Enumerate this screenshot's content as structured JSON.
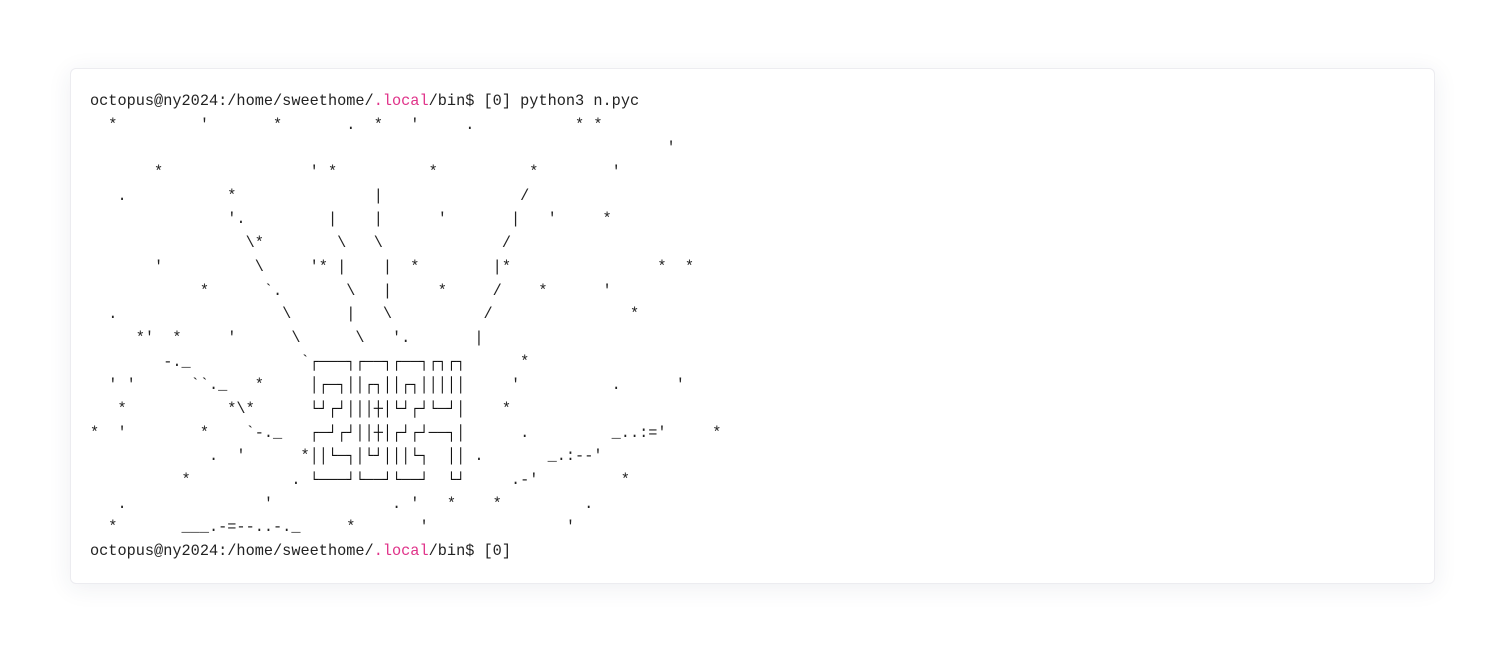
{
  "terminal": {
    "prompt": {
      "user_host_path": "octopus@ny2024:/home/sweethome/",
      "highlight": ".local",
      "rest": "/bin$ [0]",
      "command": " python3 n.pyc"
    },
    "colors": {
      "highlight": "#e0338a",
      "accent_blue": "#1f5d8c",
      "text": "#222222"
    },
    "art_lines": [
      "  *         '       *       .  *   '     .           * *",
      "                                                               '",
      "       *                ' *          *          *        '",
      "   .           *               |               /",
      "               '.         |    |      '       |   '     *",
      "                 \\*        \\   \\             /",
      "       '          \\     '* |    |  *        |*                *  *",
      "            *      `.       \\   |     *     /    *      '",
      "  .                  \\      |   \\          /               *",
      "     *'  *     '      \\      \\   '.       |"
    ],
    "box_lines": [
      {
        "left": "        -._            `",
        "box": "┌───┐┌──┐┌──┐┌┐┌┐",
        "right": "      *",
        "blue": false
      },
      {
        "left": "  ' '      ``._   *     ",
        "box": "│┌─┐││┌┐││┌┐│││││",
        "right": "     '          .      '",
        "blue": false
      },
      {
        "left": "   *           *\\*      ",
        "box": "└┘┌┘│││┼│└┘┌┘└─┘│",
        "right": "    *",
        "blue": false
      },
      {
        "left": "*  '        *    `-._   ",
        "box": "┌─┘┌┘││┼│┌┘┌┘──┐│",
        "right": "      .         _..:='     *",
        "blue": true
      },
      {
        "left": "             .  '      *",
        "box": "││└─┐│└┘│││└┐  ││",
        "right": " .       _.:--'",
        "blue": true
      },
      {
        "left": "          *           . ",
        "box": "└───┘└──┘└──┘  └┘",
        "right": "     .-'         *",
        "blue": false
      }
    ],
    "art_tail": [
      "   .               '             . '   *    *         .",
      "  *       ___.-=--..-._     *       '               '"
    ]
  }
}
